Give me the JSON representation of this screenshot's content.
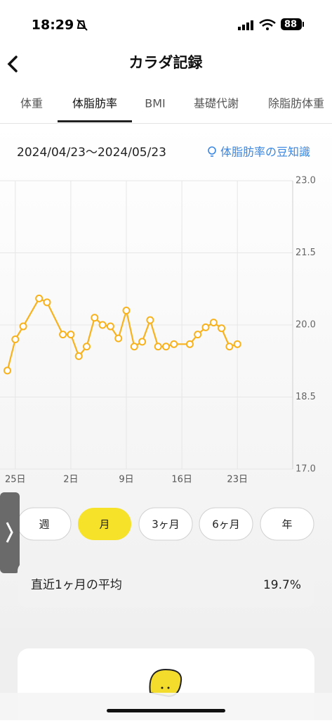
{
  "status_bar": {
    "time": "18:29",
    "battery": "88"
  },
  "header": {
    "title": "カラダ記録"
  },
  "tabs": [
    "体重",
    "体脂肪率",
    "BMI",
    "基礎代謝",
    "除脂肪体重"
  ],
  "active_tab": 1,
  "date_range": "2024/04/23〜2024/05/23",
  "tip": "体脂肪率の豆知識",
  "chart_data": {
    "type": "line",
    "categories": [
      null,
      "25日",
      null,
      null,
      null,
      null,
      null,
      null,
      "2日",
      null,
      null,
      null,
      null,
      null,
      null,
      "9日",
      null,
      null,
      null,
      null,
      null,
      null,
      "16日",
      null,
      null,
      null,
      null,
      null,
      null,
      "23日"
    ],
    "values": [
      19.05,
      19.7,
      19.97,
      null,
      20.55,
      20.47,
      null,
      19.8,
      19.8,
      19.35,
      19.55,
      20.15,
      20.0,
      19.97,
      19.72,
      20.3,
      19.55,
      19.65,
      20.1,
      19.55,
      19.55,
      19.6,
      null,
      19.6,
      19.8,
      19.95,
      20.05,
      19.93,
      19.55,
      19.6
    ],
    "color": "#f7b21e",
    "ylim": [
      17,
      23
    ],
    "yticks": [
      {
        "value": 17,
        "label": "17.0"
      },
      {
        "value": 18.5,
        "label": "18.5"
      },
      {
        "value": 20,
        "label": "20.0"
      },
      {
        "value": 21.5,
        "label": "21.5"
      },
      {
        "value": 23,
        "label": "23.0"
      }
    ],
    "grid": true
  },
  "periods": [
    "週",
    "月",
    "3ヶ月",
    "6ヶ月",
    "年"
  ],
  "active_period": 1,
  "average": {
    "label": "直近1ヶ月の平均",
    "value": "19.7%"
  }
}
